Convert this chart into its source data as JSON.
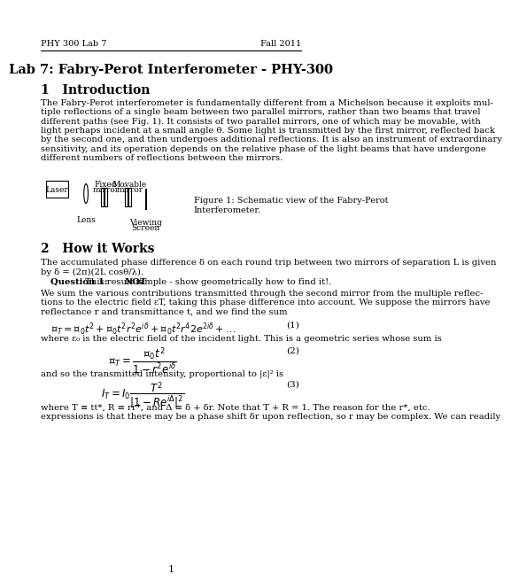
{
  "header_left": "PHY 300 Lab 7",
  "header_right": "Fall 2011",
  "title": "Lab 7: Fabry-Perot Interferometer - PHY-300",
  "section1_title": "1   Introduction",
  "intro_text": "The Fabry-Perot interferometer is fundamentally different from a Michelson because it exploits mul-\ntiple reflections of a single beam between two parallel mirrors, rather than two beams that travel\ndifferent paths (see Fig. 1). It consists of two parallel mirrors, one of which may be movable, with\nlight perhaps incident at a small angle θ. Some light is transmitted by the first mirror, reflected back\nby the second one, and then undergoes additional reflections. It is also an instrument of extraordinary\nsensitivity, and its operation depends on the relative phase of the light beams that have undergone\ndifferent numbers of reflections between the mirrors.",
  "figure_caption": "Figure 1: Schematic view of the Fabry-Perot\nInterferometer.",
  "section2_title": "2   How it Works",
  "section2_text1": "The accumulated phase difference δ on each round trip between two mirrors of separation L is given\nby δ = (2π)(2L cosθ/λ).",
  "section2_q1": "Question 1: This result is NOT simple - show geometrically how to find it!.",
  "section2_text2": "We sum the various contributions transmitted through the second mirror from the multiple reflec-\ntions to the electric field εT, taking this phase difference into account. We suppose the mirrors have\nreflectance r and transmittance t, and we find the sum",
  "eq1": "ε_T = ε_0 t^2 + ε_0 t^2 r^2 e^{iδ} + ε_0 t^2 r^4 2e^{2iδ} + ...",
  "eq1_num": "(1)",
  "eq2_text": "where ε_0 is the electric field of the incident light. This is a geometric series whose sum is",
  "eq2": "ε_T = ε_0 t^2 / (1 - r^2 e^{iδ})",
  "eq2_num": "(2)",
  "eq3_text": "and so the transmitted intensity, proportional to |ε|^2 is",
  "eq3": "I_T = I_0 T^2 / |1 - Re^{iΔ}|^2",
  "eq3_num": "(3)",
  "eq4_text": "where T ≡ tt*, R ≡ rr*, and Δ ≡ δ + δ_r. Note that T + R = 1. The reason for the r*, etc.\nexpressions is that there may be a phase shift δ_r upon reflection, so r may be complex. We can readily",
  "page_num": "1",
  "bg_color": "#ffffff",
  "text_color": "#000000"
}
